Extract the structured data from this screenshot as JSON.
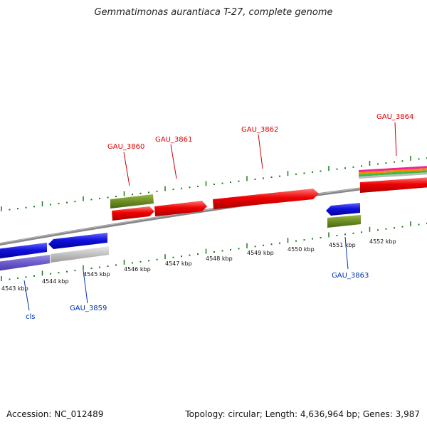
{
  "title": "Gemmatimonas aurantiaca T-27, complete genome",
  "footer": {
    "accession": "Accession: NC_012489",
    "summary": "Topology: circular; Length: 4,636,964 bp; Genes: 3,987"
  },
  "kbp_labels": [
    "4543 kbp",
    "4544 kbp",
    "4545 kbp",
    "4546 kbp",
    "4547 kbp",
    "4548 kbp",
    "4549 kbp",
    "4550 kbp",
    "4551 kbp",
    "4552 kbp"
  ],
  "gene_labels": {
    "forward": [
      "GAU_3860",
      "GAU_3861",
      "GAU_3862",
      "GAU_3864"
    ],
    "reverse": [
      "cls",
      "GAU_3859",
      "GAU_3863"
    ]
  },
  "colors": {
    "forward_gene": "#ee1111",
    "reverse_gene": "#1111dd",
    "rna_feature": "#6b8e23",
    "pseudo_feature": "#bbbbbb",
    "backbone": "#888888",
    "tick": "#1a7a1a",
    "label_forward": "#dd0000",
    "label_reverse": "#0033aa"
  }
}
